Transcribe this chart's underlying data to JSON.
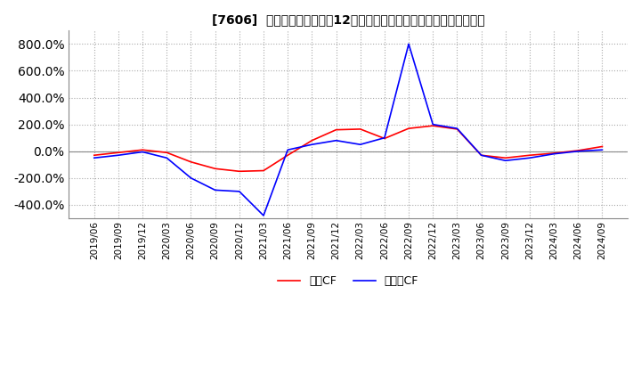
{
  "title": "[7606]  キャッシュフローの12か月移動合計の対前年同期増減率の推移",
  "legend_labels": [
    "営業CF",
    "フリーCF"
  ],
  "line_colors": [
    "#ff0000",
    "#0000ff"
  ],
  "background_color": "#ffffff",
  "grid_color": "#aaaaaa",
  "ylim": [
    -500,
    900
  ],
  "yticks": [
    -400,
    -200,
    0,
    200,
    400,
    600,
    800
  ],
  "dates": [
    "2019/06",
    "2019/09",
    "2019/12",
    "2020/03",
    "2020/06",
    "2020/09",
    "2020/12",
    "2021/03",
    "2021/06",
    "2021/09",
    "2021/12",
    "2022/03",
    "2022/06",
    "2022/09",
    "2022/12",
    "2023/03",
    "2023/06",
    "2023/09",
    "2023/12",
    "2024/03",
    "2024/06",
    "2024/09"
  ],
  "operating_cf": [
    -30,
    -10,
    10,
    -10,
    -80,
    -130,
    -150,
    -145,
    -30,
    80,
    160,
    165,
    95,
    170,
    190,
    165,
    -30,
    -50,
    -30,
    -15,
    5,
    35
  ],
  "free_cf": [
    -50,
    -30,
    -5,
    -50,
    -200,
    -290,
    -300,
    -480,
    10,
    50,
    80,
    50,
    100,
    800,
    200,
    170,
    -30,
    -70,
    -50,
    -20,
    0,
    10
  ]
}
